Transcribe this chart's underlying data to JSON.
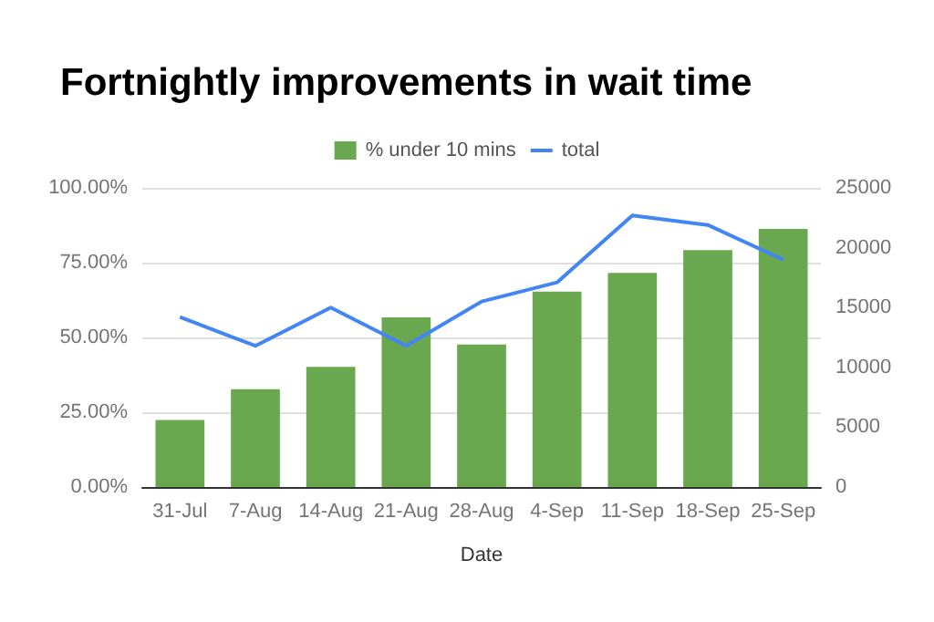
{
  "chart_data": {
    "type": "bar",
    "title": "Fortnightly improvements in wait time",
    "xlabel": "Date",
    "categories": [
      "31-Jul",
      "7-Aug",
      "14-Aug",
      "21-Aug",
      "28-Aug",
      "4-Sep",
      "11-Sep",
      "18-Sep",
      "25-Sep"
    ],
    "series": [
      {
        "name": "% under 10 mins",
        "color": "#6aa84f",
        "values": [
          22.4,
          32.7,
          40.2,
          56.7,
          47.6,
          65.3,
          71.6,
          79.2,
          86.3
        ]
      },
      {
        "name": "total",
        "type": "line",
        "axis": "y2",
        "color": "#4285f4",
        "values": [
          14200,
          11800,
          15000,
          11800,
          15500,
          17100,
          22700,
          21900,
          19000
        ]
      }
    ],
    "ylim": [
      0,
      100
    ],
    "yticks": [
      {
        "value": 0,
        "label": "0.00%"
      },
      {
        "value": 25,
        "label": "25.00%"
      },
      {
        "value": 50,
        "label": "50.00%"
      },
      {
        "value": 75,
        "label": "75.00%"
      },
      {
        "value": 100,
        "label": "100.00%"
      }
    ],
    "y2lim": [
      0,
      25000
    ],
    "y2ticks": [
      0,
      5000,
      10000,
      15000,
      20000,
      25000
    ],
    "grid": "y",
    "legend": "top",
    "marker": "none"
  }
}
